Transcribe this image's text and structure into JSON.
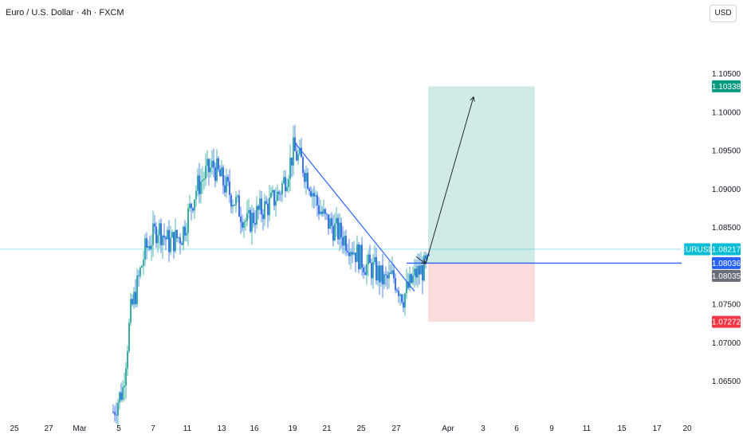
{
  "header": {
    "title": "Euro / U.S. Dollar · 4h · FXCM",
    "currency_button": "USD"
  },
  "colors": {
    "up": "#26a69a",
    "down": "#2962ff",
    "trendline": "#2962ff",
    "target_zone": "#d0ebe5",
    "stop_zone": "#fcdcdc",
    "target_badge": "#089981",
    "stop_badge": "#f23645",
    "symbol_badge": "#00bcd4",
    "entry_badge": "#2962ff",
    "close_badge": "#6a6d78",
    "axis_text": "#131722"
  },
  "chart_data": {
    "type": "candlestick",
    "symbol": "EURUSD",
    "timeframe": "4h",
    "ylim": [
      1.0605,
      1.1115
    ],
    "y_ticks": [
      "1.10500",
      "1.10000",
      "1.09500",
      "1.09000",
      "1.08500",
      "1.07500",
      "1.07000",
      "1.06500"
    ],
    "x_ticks": [
      "25",
      "27",
      "Mar",
      "5",
      "7",
      "11",
      "13",
      "16",
      "19",
      "21",
      "25",
      "27",
      "Apr",
      "3",
      "6",
      "9",
      "11",
      "15",
      "17",
      "20"
    ],
    "path_closes": [
      [
        0,
        1.061
      ],
      [
        6,
        1.064
      ],
      [
        11,
        1.074
      ],
      [
        14,
        1.0765
      ],
      [
        20,
        1.082
      ],
      [
        28,
        1.085
      ],
      [
        35,
        1.083
      ],
      [
        43,
        1.084
      ],
      [
        52,
        1.09
      ],
      [
        58,
        1.092
      ],
      [
        63,
        1.093
      ],
      [
        70,
        1.0905
      ],
      [
        76,
        1.0885
      ],
      [
        84,
        1.0855
      ],
      [
        91,
        1.087
      ],
      [
        98,
        1.088
      ],
      [
        104,
        1.0895
      ],
      [
        109,
        1.092
      ],
      [
        113,
        1.095
      ],
      [
        118,
        1.0935
      ],
      [
        123,
        1.091
      ],
      [
        128,
        1.088
      ],
      [
        133,
        1.086
      ],
      [
        138,
        1.085
      ],
      [
        143,
        1.084
      ],
      [
        148,
        1.083
      ],
      [
        153,
        1.0815
      ],
      [
        159,
        1.08
      ],
      [
        164,
        1.0795
      ],
      [
        170,
        1.078
      ],
      [
        176,
        1.0785
      ],
      [
        182,
        1.076
      ],
      [
        186,
        1.0775
      ],
      [
        190,
        1.079
      ],
      [
        194,
        1.0795
      ],
      [
        197,
        1.08
      ],
      [
        198,
        1.0804
      ]
    ],
    "last_price": {
      "label": "EURUSD",
      "value": "1.08217"
    },
    "trendline": {
      "from": [
        114,
        1.096
      ],
      "to": [
        189,
        1.0767
      ]
    },
    "position": {
      "type": "long",
      "entry": "1.08036",
      "target": "1.10338",
      "stop": "1.07272",
      "close_value": "1.08035"
    },
    "projection_arrows": [
      {
        "from": [
          190,
          1.0812
        ],
        "to": [
          196,
          1.0803
        ]
      },
      {
        "from": [
          196,
          1.0803
        ],
        "to": [
          226,
          1.102
        ]
      }
    ]
  }
}
